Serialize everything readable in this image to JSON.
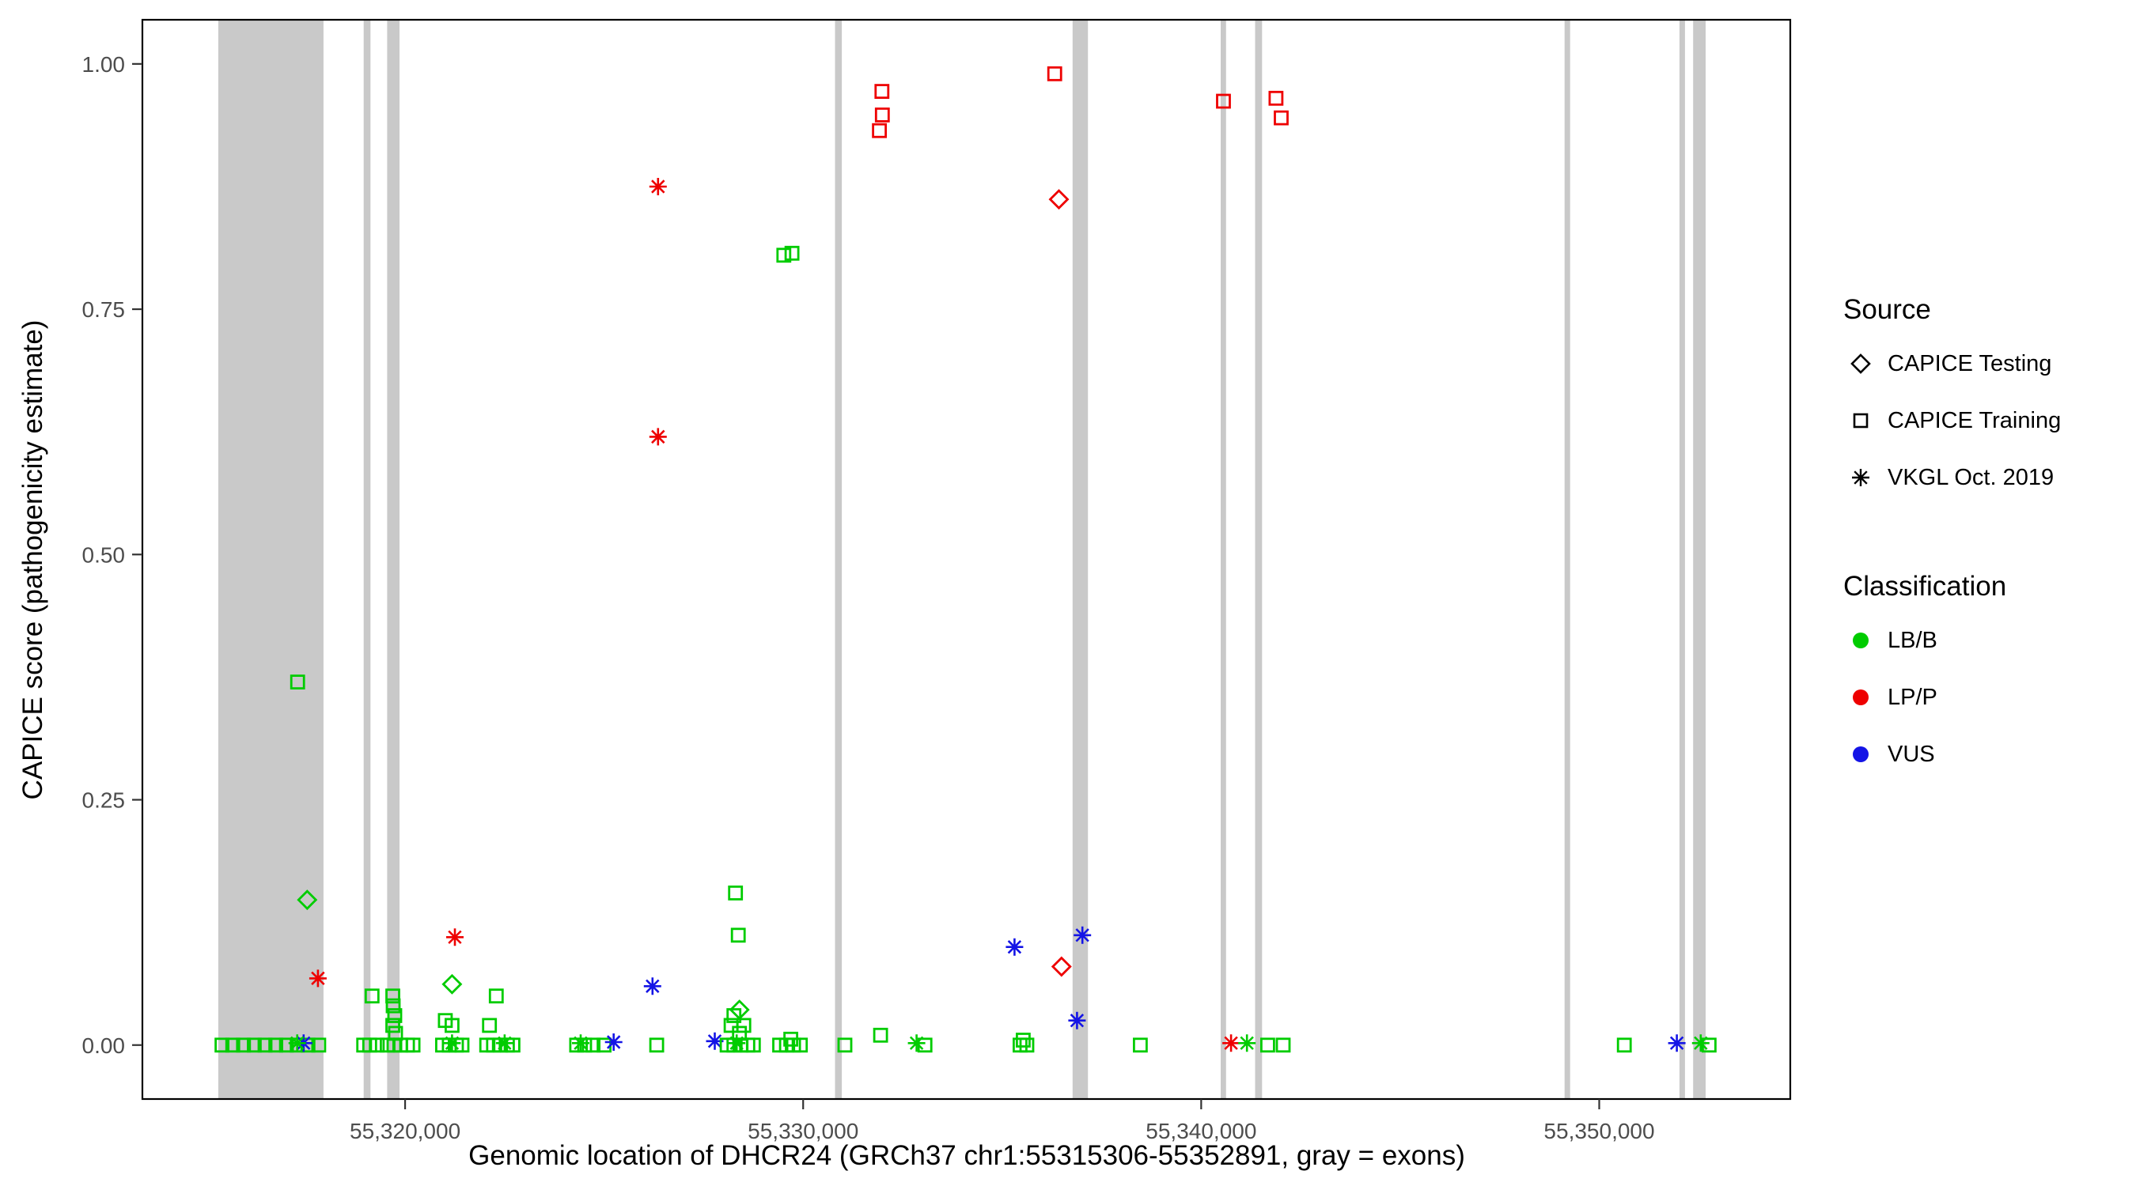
{
  "chart_data": {
    "type": "scatter",
    "xlabel": "Genomic location of DHCR24 (GRCh37 chr1:55315306-55352891, gray = exons)",
    "ylabel": "CAPICE score (pathogenicity estimate)",
    "x_domain": [
      55313400,
      55354800
    ],
    "y_domain": [
      -0.055,
      1.045
    ],
    "x_ticks": [
      {
        "value": 55320000,
        "label": "55,320,000"
      },
      {
        "value": 55330000,
        "label": "55,330,000"
      },
      {
        "value": 55340000,
        "label": "55,340,000"
      },
      {
        "value": 55350000,
        "label": "55,350,000"
      }
    ],
    "y_ticks": [
      {
        "value": 0.0,
        "label": "0.00"
      },
      {
        "value": 0.25,
        "label": "0.25"
      },
      {
        "value": 0.5,
        "label": "0.50"
      },
      {
        "value": 0.75,
        "label": "0.75"
      },
      {
        "value": 1.0,
        "label": "1.00"
      }
    ],
    "exon_color": "#c9c9c9",
    "exons": [
      [
        55315306,
        55317950
      ],
      [
        55318960,
        55319130
      ],
      [
        55319550,
        55319860
      ],
      [
        55330800,
        55330970
      ],
      [
        55336770,
        55337155
      ],
      [
        55340490,
        55340625
      ],
      [
        55341355,
        55341530
      ],
      [
        55349130,
        55349270
      ],
      [
        55352015,
        55352155
      ],
      [
        55352360,
        55352675
      ]
    ],
    "classification_colors": {
      "LB/B": "#00cc00",
      "LP/P": "#ee0000",
      "VUS": "#1414e6"
    },
    "source_shapes": {
      "testing": "diamond",
      "training": "square",
      "vkgl": "asterisk"
    },
    "points": [
      [
        55315400,
        0,
        "LB/B",
        "training"
      ],
      [
        55315670,
        0,
        "LB/B",
        "training"
      ],
      [
        55315940,
        0,
        "LB/B",
        "training"
      ],
      [
        55316210,
        0,
        "LB/B",
        "training"
      ],
      [
        55316480,
        0,
        "LB/B",
        "training"
      ],
      [
        55316750,
        0,
        "LB/B",
        "training"
      ],
      [
        55317020,
        0,
        "LB/B",
        "training"
      ],
      [
        55317290,
        0,
        "LB/B",
        "training"
      ],
      [
        55317560,
        0,
        "LB/B",
        "training"
      ],
      [
        55317830,
        0,
        "LB/B",
        "training"
      ],
      [
        55317300,
        0.37,
        "LB/B",
        "training"
      ],
      [
        55317540,
        0.148,
        "LB/B",
        "testing"
      ],
      [
        55317810,
        0.068,
        "LP/P",
        "vkgl"
      ],
      [
        55317450,
        0.002,
        "VUS",
        "vkgl"
      ],
      [
        55317290,
        0.002,
        "LB/B",
        "vkgl"
      ],
      [
        55318960,
        0,
        "LB/B",
        "training"
      ],
      [
        55319110,
        0,
        "LB/B",
        "training"
      ],
      [
        55319300,
        0,
        "LB/B",
        "training"
      ],
      [
        55319550,
        0,
        "LB/B",
        "training"
      ],
      [
        55319720,
        0,
        "LB/B",
        "training"
      ],
      [
        55319890,
        0,
        "LB/B",
        "training"
      ],
      [
        55320060,
        0,
        "LB/B",
        "training"
      ],
      [
        55320200,
        0,
        "LB/B",
        "training"
      ],
      [
        55319170,
        0.05,
        "LB/B",
        "training"
      ],
      [
        55319690,
        0.05,
        "LB/B",
        "training"
      ],
      [
        55319700,
        0.04,
        "LB/B",
        "training"
      ],
      [
        55319740,
        0.03,
        "LB/B",
        "training"
      ],
      [
        55319690,
        0.02,
        "LB/B",
        "training"
      ],
      [
        55319760,
        0.012,
        "LB/B",
        "training"
      ],
      [
        55321180,
        0.062,
        "LB/B",
        "testing"
      ],
      [
        55321250,
        0.11,
        "LP/P",
        "vkgl"
      ],
      [
        55321010,
        0.025,
        "LB/B",
        "training"
      ],
      [
        55321180,
        0.02,
        "LB/B",
        "training"
      ],
      [
        55320940,
        0,
        "LB/B",
        "training"
      ],
      [
        55321110,
        0,
        "LB/B",
        "training"
      ],
      [
        55321290,
        0,
        "LB/B",
        "training"
      ],
      [
        55321430,
        0,
        "LB/B",
        "training"
      ],
      [
        55321180,
        0.002,
        "LB/B",
        "vkgl"
      ],
      [
        55322290,
        0.05,
        "LB/B",
        "training"
      ],
      [
        55322120,
        0.02,
        "LB/B",
        "training"
      ],
      [
        55322050,
        0,
        "LB/B",
        "training"
      ],
      [
        55322220,
        0,
        "LB/B",
        "training"
      ],
      [
        55322400,
        0,
        "LB/B",
        "training"
      ],
      [
        55322570,
        0,
        "LB/B",
        "training"
      ],
      [
        55322710,
        0,
        "LB/B",
        "training"
      ],
      [
        55322500,
        0.002,
        "LB/B",
        "vkgl"
      ],
      [
        55324310,
        0,
        "LB/B",
        "training"
      ],
      [
        55324510,
        0,
        "LB/B",
        "training"
      ],
      [
        55324720,
        0,
        "LB/B",
        "training"
      ],
      [
        55325000,
        0,
        "LB/B",
        "training"
      ],
      [
        55324410,
        0.002,
        "LB/B",
        "vkgl"
      ],
      [
        55325240,
        0.003,
        "VUS",
        "vkgl"
      ],
      [
        55326215,
        0.06,
        "VUS",
        "vkgl"
      ],
      [
        55326320,
        0,
        "LB/B",
        "training"
      ],
      [
        55326355,
        0.875,
        "LP/P",
        "vkgl"
      ],
      [
        55326355,
        0.62,
        "LP/P",
        "vkgl"
      ],
      [
        55327780,
        0.004,
        "VUS",
        "vkgl"
      ],
      [
        55328300,
        0.155,
        "LB/B",
        "training"
      ],
      [
        55328370,
        0.112,
        "LB/B",
        "training"
      ],
      [
        55328400,
        0.036,
        "LB/B",
        "testing"
      ],
      [
        55328260,
        0.03,
        "LB/B",
        "training"
      ],
      [
        55328190,
        0.02,
        "LB/B",
        "training"
      ],
      [
        55328510,
        0.02,
        "LB/B",
        "training"
      ],
      [
        55328400,
        0.012,
        "LB/B",
        "training"
      ],
      [
        55328090,
        0,
        "LB/B",
        "training"
      ],
      [
        55328260,
        0,
        "LB/B",
        "training"
      ],
      [
        55328440,
        0,
        "LB/B",
        "training"
      ],
      [
        55328610,
        0,
        "LB/B",
        "training"
      ],
      [
        55328750,
        0,
        "LB/B",
        "training"
      ],
      [
        55328330,
        0.002,
        "LB/B",
        "vkgl"
      ],
      [
        55329410,
        0,
        "LB/B",
        "training"
      ],
      [
        55329580,
        0,
        "LB/B",
        "training"
      ],
      [
        55329760,
        0,
        "LB/B",
        "training"
      ],
      [
        55329930,
        0,
        "LB/B",
        "training"
      ],
      [
        55329690,
        0.006,
        "LB/B",
        "training"
      ],
      [
        55329515,
        0.805,
        "LB/B",
        "training"
      ],
      [
        55329720,
        0.807,
        "LB/B",
        "training"
      ],
      [
        55331050,
        0,
        "LB/B",
        "training"
      ],
      [
        55331945,
        0.01,
        "LB/B",
        "training"
      ],
      [
        55331980,
        0.972,
        "LP/P",
        "training"
      ],
      [
        55331990,
        0.948,
        "LP/P",
        "training"
      ],
      [
        55331915,
        0.932,
        "LP/P",
        "training"
      ],
      [
        55332850,
        0.002,
        "LB/B",
        "vkgl"
      ],
      [
        55333060,
        0,
        "LB/B",
        "training"
      ],
      [
        55335310,
        0.1,
        "VUS",
        "vkgl"
      ],
      [
        55335450,
        0,
        "LB/B",
        "training"
      ],
      [
        55335620,
        0,
        "LB/B",
        "training"
      ],
      [
        55335530,
        0.005,
        "LB/B",
        "training"
      ],
      [
        55336320,
        0.99,
        "LP/P",
        "training"
      ],
      [
        55336425,
        0.862,
        "LP/P",
        "testing"
      ],
      [
        55336490,
        0.08,
        "LP/P",
        "testing"
      ],
      [
        55336880,
        0.025,
        "VUS",
        "vkgl"
      ],
      [
        55337015,
        0.112,
        "VUS",
        "vkgl"
      ],
      [
        55338470,
        0,
        "LB/B",
        "training"
      ],
      [
        55340560,
        0.962,
        "LP/P",
        "training"
      ],
      [
        55340750,
        0.002,
        "LP/P",
        "vkgl"
      ],
      [
        55341150,
        0.002,
        "LB/B",
        "vkgl"
      ],
      [
        55341670,
        0,
        "LB/B",
        "training"
      ],
      [
        55341880,
        0.965,
        "LP/P",
        "training"
      ],
      [
        55342010,
        0.945,
        "LP/P",
        "training"
      ],
      [
        55342060,
        0,
        "LB/B",
        "training"
      ],
      [
        55350630,
        0,
        "LB/B",
        "training"
      ],
      [
        55351950,
        0.002,
        "VUS",
        "vkgl"
      ],
      [
        55352550,
        0.002,
        "LB/B",
        "vkgl"
      ],
      [
        55352760,
        0,
        "LB/B",
        "training"
      ]
    ]
  },
  "legend": {
    "source_title": "Source",
    "source_items": [
      {
        "label": "CAPICE Testing",
        "shape": "diamond"
      },
      {
        "label": "CAPICE Training",
        "shape": "square"
      },
      {
        "label": "VKGL Oct. 2019",
        "shape": "asterisk"
      }
    ],
    "classification_title": "Classification",
    "classification_items": [
      {
        "label": "LB/B",
        "color": "#00cc00"
      },
      {
        "label": "LP/P",
        "color": "#ee0000"
      },
      {
        "label": "VUS",
        "color": "#1414e6"
      }
    ]
  }
}
